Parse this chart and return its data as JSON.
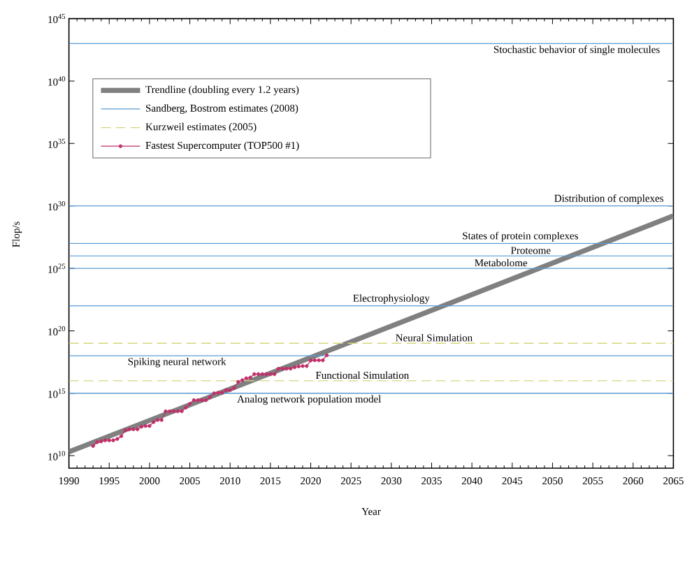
{
  "chart_data": {
    "type": "line",
    "xlabel": "Year",
    "ylabel": "Flop/s",
    "log": "y",
    "legend": "top left",
    "xlim": [
      1990,
      2065
    ],
    "xticks": [
      1990,
      1995,
      2000,
      2005,
      2010,
      2015,
      2020,
      2025,
      2030,
      2035,
      2040,
      2045,
      2050,
      2055,
      2060,
      2065
    ],
    "ylim": [
      1000000000.0,
      1e+45
    ],
    "yticks": [
      {
        "value": 10000000000.0,
        "label": "10$^{10}$"
      },
      {
        "value": 1000000000000000.0,
        "label": "10$^{15}$"
      },
      {
        "value": 1e+20,
        "label": "10$^{20}$"
      },
      {
        "value": 1e+25,
        "label": "10$^{25}$"
      },
      {
        "value": 1e+30,
        "label": "10$^{30}$"
      },
      {
        "value": 1e+35,
        "label": "10$^{35}$"
      },
      {
        "value": 1e+40,
        "label": "10$^{40}$"
      },
      {
        "value": 1e+45,
        "label": "10$^{45}$"
      }
    ],
    "series": [
      {
        "name": "Trendline (doubling every 1.2 years)",
        "color": "#808080",
        "x": [
          1990,
          2065
        ],
        "values": [
          20000000000.0,
          1.6e+29
        ]
      },
      {
        "name": "Sandberg, Bostrom estimates (2008)",
        "color": "#5b9bd5",
        "x": [
          1990,
          2065
        ],
        "values": [
          1e+43,
          1e+43
        ]
      },
      {
        "color": "#5b9bd5",
        "x": [
          1990,
          2065
        ],
        "values": [
          1e+30,
          1e+30
        ]
      },
      {
        "color": "#5b9bd5",
        "x": [
          1990,
          2065
        ],
        "values": [
          1e+27,
          1e+27
        ]
      },
      {
        "color": "#5b9bd5",
        "x": [
          1990,
          2065
        ],
        "values": [
          1e+26,
          1e+26
        ]
      },
      {
        "color": "#5b9bd5",
        "x": [
          1990,
          2065
        ],
        "values": [
          1e+25,
          1e+25
        ]
      },
      {
        "color": "#5b9bd5",
        "x": [
          1990,
          2065
        ],
        "values": [
          1e+22,
          1e+22
        ]
      },
      {
        "color": "#5b9bd5",
        "x": [
          1990,
          2065
        ],
        "values": [
          1e+18,
          1e+18
        ]
      },
      {
        "color": "#5b9bd5",
        "x": [
          1990,
          2065
        ],
        "values": [
          1000000000000000.0,
          1000000000000000.0
        ]
      },
      {
        "name": "Kurzweil estimates (2005)",
        "color": "#d6d67e",
        "line_style": "dashed",
        "x": [
          1990,
          2065
        ],
        "values": [
          1e+19,
          1e+19
        ]
      },
      {
        "color": "#d6d67e",
        "line_style": "dashed",
        "x": [
          1990,
          2065
        ],
        "values": [
          1e+16,
          1e+16
        ]
      },
      {
        "name": "Fastest Supercomputer (TOP500 #1)",
        "color": "#c0306a",
        "marker": "circle",
        "x": [
          1993.0,
          1993.5,
          1994.0,
          1994.5,
          1995.0,
          1995.5,
          1996.0,
          1996.5,
          1997.0,
          1997.5,
          1998.0,
          1998.5,
          1999.0,
          1999.5,
          2000.0,
          2000.5,
          2001.0,
          2001.5,
          2002.0,
          2002.5,
          2003.0,
          2003.5,
          2004.0,
          2004.5,
          2005.0,
          2005.5,
          2006.0,
          2006.5,
          2007.0,
          2007.5,
          2008.0,
          2008.5,
          2009.0,
          2009.5,
          2010.0,
          2010.5,
          2011.0,
          2011.5,
          2012.0,
          2012.5,
          2013.0,
          2013.5,
          2014.0,
          2014.5,
          2015.0,
          2015.5,
          2016.0,
          2016.5,
          2017.0,
          2017.5,
          2018.0,
          2018.5,
          2019.0,
          2019.5,
          2020.0,
          2020.5,
          2021.0,
          2021.5,
          2022.0
        ],
        "values": [
          60000000000.0,
          120000000000.0,
          140000000000.0,
          170000000000.0,
          170000000000.0,
          170000000000.0,
          220000000000.0,
          370000000000.0,
          1100000000000.0,
          1300000000000.0,
          1300000000000.0,
          1300000000000.0,
          2100000000000.0,
          2400000000000.0,
          2400000000000.0,
          4900000000000.0,
          7200000000000.0,
          7200000000000.0,
          36000000000000.0,
          36000000000000.0,
          36000000000000.0,
          36000000000000.0,
          36000000000000.0,
          71000000000000.0,
          140000000000000.0,
          280000000000000.0,
          280000000000000.0,
          280000000000000.0,
          280000000000000.0,
          480000000000000.0,
          1000000000000000.0,
          1100000000000000.0,
          1100000000000000.0,
          1800000000000000.0,
          1800000000000000.0,
          2600000000000000.0,
          8200000000000000.0,
          1.1e+16,
          1.6e+16,
          1.8e+16,
          3.4e+16,
          3.4e+16,
          3.4e+16,
          3.4e+16,
          3.4e+16,
          3.4e+16,
          9.3e+16,
          9.3e+16,
          9.3e+16,
          9.3e+16,
          1.2e+17,
          1.4e+17,
          1.5e+17,
          1.5e+17,
          4.2e+17,
          4.4e+17,
          4.4e+17,
          4.4e+17,
          1.1e+18
        ]
      }
    ],
    "annotations": [
      {
        "text": "Stochastic behavior of single molecules",
        "x": 2053,
        "y": 1e+43
      },
      {
        "text": "Distribution of complexes",
        "x": 2057,
        "y": 1e+30
      },
      {
        "text": "States of protein complexes",
        "x": 2046,
        "y": 1e+27
      },
      {
        "text": "Proteome",
        "x": 2047.3,
        "y": 1e+26
      },
      {
        "text": "Metabolome",
        "x": 2043.6,
        "y": 1e+25
      },
      {
        "text": "Electrophysiology",
        "x": 2030,
        "y": 1e+22
      },
      {
        "text": "Neural Simulation",
        "x": 2035.3,
        "y": 1e+19
      },
      {
        "text": "Spiking neural network",
        "x": 2003.4,
        "y": 1e+18
      },
      {
        "text": "Functional Simulation",
        "x": 2026.4,
        "y": 1e+16
      },
      {
        "text": "Analog network population model",
        "x": 2019.8,
        "y": 1000000000000000.0
      }
    ]
  }
}
